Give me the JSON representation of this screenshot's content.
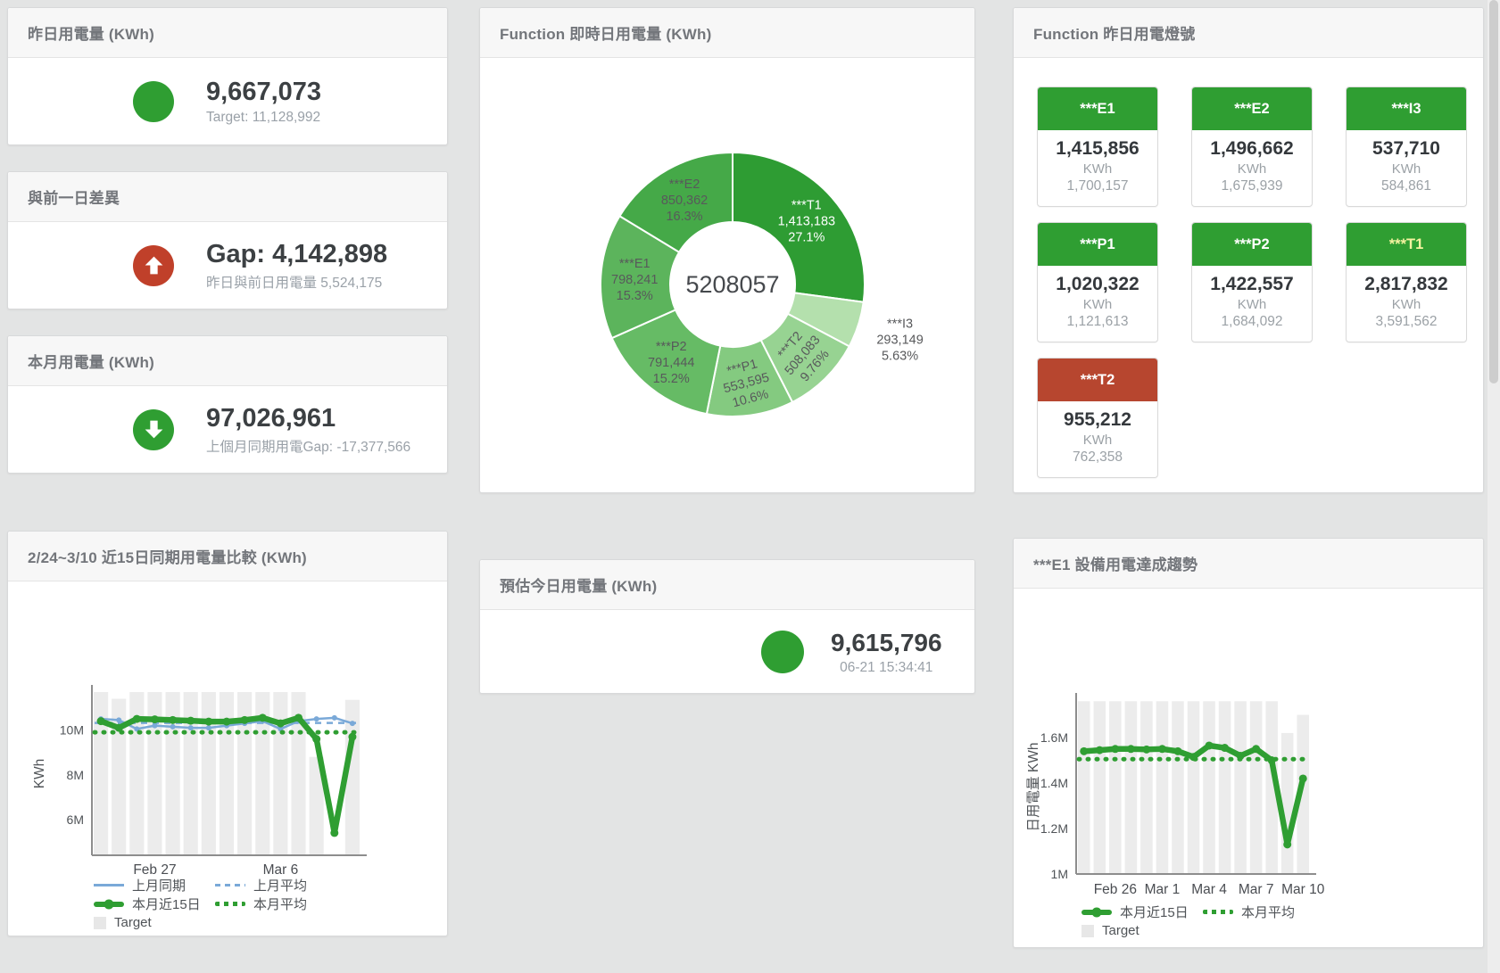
{
  "colors": {
    "green": "#2f9e32",
    "red": "#c0402a",
    "blue": "#7aa9d8",
    "bar_gray": "#ececec",
    "value_text": "#3c4043",
    "sub_text": "#9aa1a8",
    "title_text": "#73767b",
    "t2_red": "#b7462f",
    "t1_label_yellow": "#f6f3a0"
  },
  "cards": {
    "yesterday": {
      "title": "昨日用電量 (KWh)",
      "value": "9,667,073",
      "subtext": "Target: 11,128,992"
    },
    "diff": {
      "title": "與前一日差異",
      "value": "Gap: 4,142,898",
      "subtext": "昨日與前日用電量 5,524,175",
      "arrow": "up"
    },
    "month": {
      "title": "本月用電量 (KWh)",
      "value": "97,026,961",
      "subtext": "上個月同期用電Gap: -17,377,566",
      "arrow": "down"
    },
    "compare15": {
      "title": "2/24~3/10 近15日同期用電量比較 (KWh)"
    },
    "realtime": {
      "title": "Function 即時日用電量 (KWh)"
    },
    "estimate": {
      "title": "預估今日用電量 (KWh)",
      "value": "9,615,796",
      "subtext": "06-21 15:34:41"
    },
    "lights": {
      "title": "Function 昨日用電燈號",
      "unit": "KWh",
      "tiles": [
        {
          "name": "***E1",
          "value": "1,415,856",
          "target": "1,700,157",
          "color": "#2f9e32",
          "text_color": "#ffffff"
        },
        {
          "name": "***E2",
          "value": "1,496,662",
          "target": "1,675,939",
          "color": "#2f9e32",
          "text_color": "#ffffff"
        },
        {
          "name": "***I3",
          "value": "537,710",
          "target": "584,861",
          "color": "#2f9e32",
          "text_color": "#ffffff"
        },
        {
          "name": "***P1",
          "value": "1,020,322",
          "target": "1,121,613",
          "color": "#2f9e32",
          "text_color": "#ffffff"
        },
        {
          "name": "***P2",
          "value": "1,422,557",
          "target": "1,684,092",
          "color": "#2f9e32",
          "text_color": "#ffffff"
        },
        {
          "name": "***T1",
          "value": "2,817,832",
          "target": "3,591,562",
          "color": "#2f9e32",
          "text_color": "#f6f3a0"
        },
        {
          "name": "***T2",
          "value": "955,212",
          "target": "762,358",
          "color": "#b7462f",
          "text_color": "#ffffff"
        }
      ]
    },
    "e1trend": {
      "title": "***E1 設備用電達成趨勢"
    }
  },
  "chart_data": [
    {
      "type": "pie",
      "title": "Function 即時日用電量 (KWh)",
      "center_label": "5208057",
      "total": 5208057,
      "slices": [
        {
          "name": "***T1",
          "value": 1413183,
          "value_fmt": "1,413,183",
          "pct": "27.1%",
          "color": "#2e9c33",
          "label_color": "#ffffff",
          "label_pos": "inside"
        },
        {
          "name": "***I3",
          "value": 293149,
          "value_fmt": "293,149",
          "pct": "5.63%",
          "color": "#b4e0ad",
          "label_color": "#58595b",
          "label_pos": "outside"
        },
        {
          "name": "***T2",
          "value": 508083,
          "value_fmt": "508,083",
          "pct": "9.76%",
          "color": "#97d392",
          "label_color": "#58595b",
          "label_pos": "inside",
          "rotate": -50
        },
        {
          "name": "***P1",
          "value": 553595,
          "value_fmt": "553,595",
          "pct": "10.6%",
          "color": "#84ca80",
          "label_color": "#58595b",
          "label_pos": "inside",
          "rotate": -15
        },
        {
          "name": "***P2",
          "value": 791444,
          "value_fmt": "791,444",
          "pct": "15.2%",
          "color": "#66bb65",
          "label_color": "#58595b",
          "label_pos": "inside"
        },
        {
          "name": "***E1",
          "value": 798241,
          "value_fmt": "798,241",
          "pct": "15.3%",
          "color": "#5cb45c",
          "label_color": "#58595b",
          "label_pos": "inside"
        },
        {
          "name": "***E2",
          "value": 850362,
          "value_fmt": "850,362",
          "pct": "16.3%",
          "color": "#45a948",
          "label_color": "#58595b",
          "label_pos": "inside"
        }
      ]
    },
    {
      "type": "line",
      "title": "2/24~3/10 近15日同期用電量比較 (KWh)",
      "ylabel": "KWh",
      "ylim": [
        4400000,
        11700000
      ],
      "yticks": [
        {
          "v": 6000000,
          "label": "6M"
        },
        {
          "v": 8000000,
          "label": "8M"
        },
        {
          "v": 10000000,
          "label": "10M"
        }
      ],
      "xticks": [
        {
          "i": 3,
          "label": "Feb 27"
        },
        {
          "i": 10,
          "label": "Mar 6"
        }
      ],
      "target_bars": {
        "name": "Target",
        "color": "#ececec",
        "values": [
          11700000,
          11400000,
          11700000,
          11700000,
          11700000,
          11700000,
          11700000,
          11700000,
          11700000,
          11700000,
          11700000,
          11700000,
          8800000,
          null,
          11350000
        ]
      },
      "series": [
        {
          "name": "上月同期",
          "color": "#7aa9d8",
          "width": 2.5,
          "dot_r": 3,
          "values": [
            10500000,
            10450000,
            10050000,
            10200000,
            10150000,
            10100000,
            10100000,
            10200000,
            10300000,
            10400000,
            10050000,
            10400000,
            10500000,
            10550000,
            10300000
          ]
        },
        {
          "name": "上月平均",
          "color": "#7aa9d8",
          "width": 2.5,
          "dash": "7 6",
          "const_value": 10320000
        },
        {
          "name": "本月近15日",
          "color": "#2f9e32",
          "width": 6.5,
          "dot_r": 4.5,
          "values": [
            10400000,
            10100000,
            10500000,
            10480000,
            10450000,
            10420000,
            10380000,
            10380000,
            10450000,
            10550000,
            10300000,
            10550000,
            9600000,
            5400000,
            9700000
          ]
        },
        {
          "name": "本月平均",
          "color": "#2f9e32",
          "width": 5,
          "dash": "1 9",
          "linecap": "round",
          "const_value": 9900000
        }
      ]
    },
    {
      "type": "line",
      "title": "***E1 設備用電達成趨勢",
      "ylabel": "日用電量 KWh",
      "ylim": [
        1000000,
        1765000
      ],
      "yticks": [
        {
          "v": 1000000,
          "label": "1M"
        },
        {
          "v": 1200000,
          "label": "1.2M"
        },
        {
          "v": 1400000,
          "label": "1.4M"
        },
        {
          "v": 1600000,
          "label": "1.6M"
        }
      ],
      "xticks": [
        {
          "i": 2,
          "label": "Feb 26"
        },
        {
          "i": 5,
          "label": "Mar 1"
        },
        {
          "i": 8,
          "label": "Mar 4"
        },
        {
          "i": 11,
          "label": "Mar 7"
        },
        {
          "i": 14,
          "label": "Mar 10"
        }
      ],
      "target_bars": {
        "name": "Target",
        "color": "#ececec",
        "values": [
          1760000,
          1760000,
          1760000,
          1760000,
          1760000,
          1760000,
          1760000,
          1760000,
          1760000,
          1760000,
          1760000,
          1760000,
          1760000,
          1620000,
          1700000
        ]
      },
      "series": [
        {
          "name": "本月近15日",
          "color": "#2f9e32",
          "width": 6.5,
          "dot_r": 4.5,
          "values": [
            1540000,
            1545000,
            1550000,
            1550000,
            1548000,
            1550000,
            1540000,
            1515000,
            1565000,
            1555000,
            1520000,
            1550000,
            1500000,
            1130000,
            1420000
          ]
        },
        {
          "name": "本月平均",
          "color": "#2f9e32",
          "width": 5,
          "dash": "1 9",
          "linecap": "round",
          "const_value": 1505000
        }
      ]
    }
  ],
  "legends": {
    "compare15": {
      "rows": [
        [
          {
            "label": "上月同期",
            "type": "line",
            "color": "#7aa9d8"
          },
          {
            "label": "上月平均",
            "type": "dash",
            "color": "#7aa9d8"
          }
        ],
        [
          {
            "label": "本月近15日",
            "type": "thick",
            "color": "#2f9e32"
          },
          {
            "label": "本月平均",
            "type": "dots",
            "color": "#2f9e32"
          }
        ],
        [
          {
            "label": "Target",
            "type": "square",
            "color": "#e7e7e7"
          }
        ]
      ]
    },
    "e1trend": {
      "rows": [
        [
          {
            "label": "本月近15日",
            "type": "thick",
            "color": "#2f9e32"
          },
          {
            "label": "本月平均",
            "type": "dots",
            "color": "#2f9e32"
          }
        ],
        [
          {
            "label": "Target",
            "type": "square",
            "color": "#e7e7e7"
          }
        ]
      ]
    }
  }
}
